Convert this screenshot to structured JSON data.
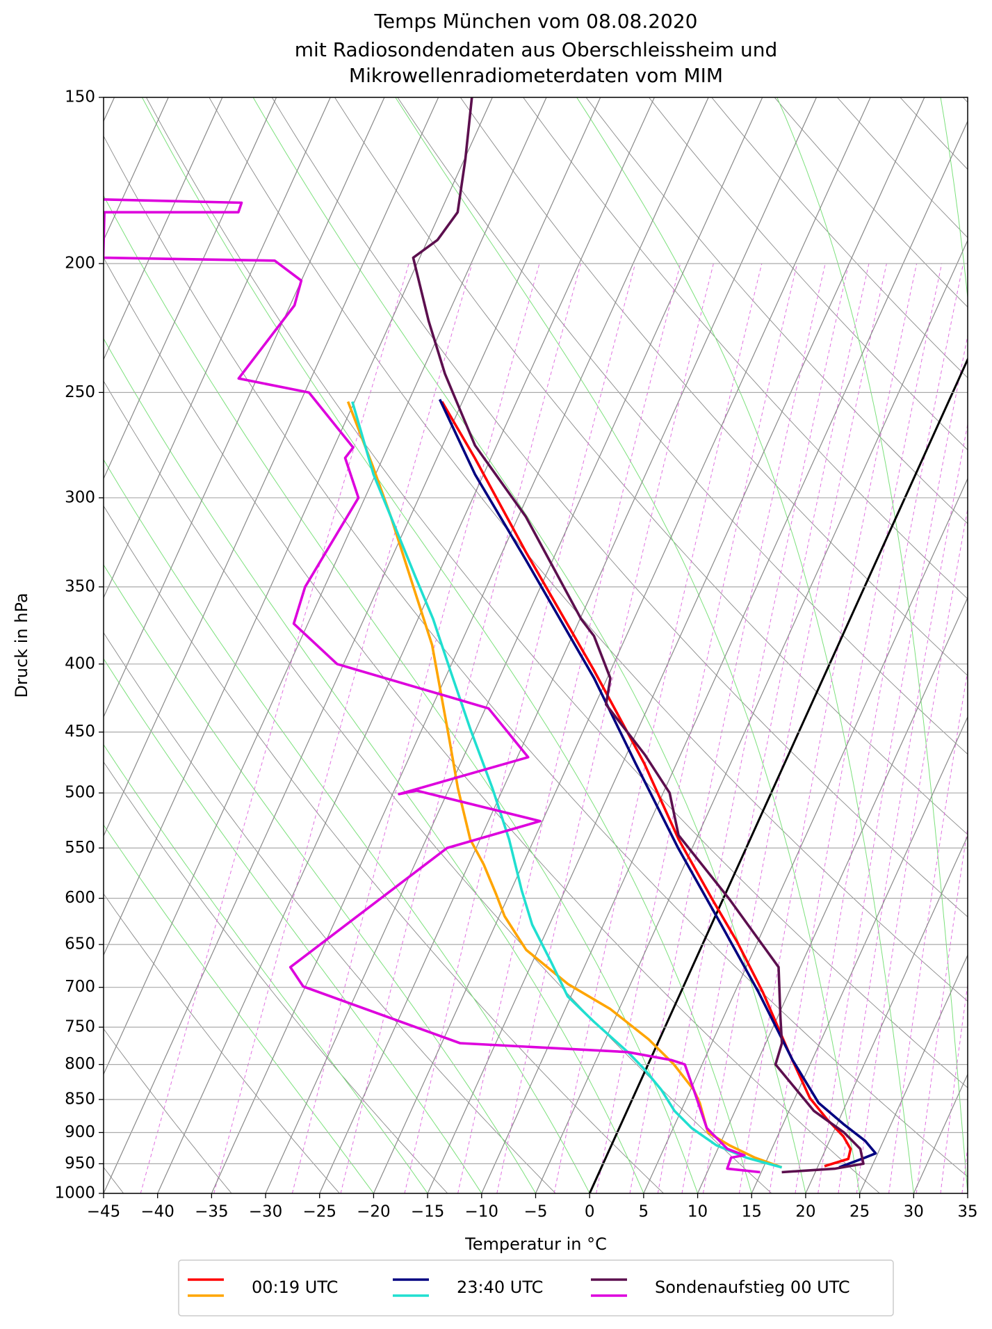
{
  "chart_data": {
    "type": "skewt",
    "title": [
      "Temps München vom 08.08.2020",
      "mit Radiosondendaten aus Oberschleissheim und",
      "Mikrowellenradiometerdaten vom MIM"
    ],
    "x_label": "Temperatur in °C",
    "y_label": "Druck in hPa",
    "log_scale_y": true,
    "grid": true,
    "legend_position": "bottom",
    "xlim": [
      -45,
      35
    ],
    "ylim": [
      1000,
      150
    ],
    "xticks": [
      {
        "value": -45,
        "label": "−45"
      },
      {
        "value": -40,
        "label": "−40"
      },
      {
        "value": -35,
        "label": "−35"
      },
      {
        "value": -30,
        "label": "−30"
      },
      {
        "value": -25,
        "label": "−25"
      },
      {
        "value": -20,
        "label": "−20"
      },
      {
        "value": -15,
        "label": "−15"
      },
      {
        "value": -10,
        "label": "−10"
      },
      {
        "value": -5,
        "label": "−5"
      },
      0,
      5,
      10,
      15,
      20,
      25,
      30,
      35
    ],
    "yticks": [
      1000,
      950,
      900,
      850,
      800,
      750,
      700,
      650,
      600,
      550,
      500,
      450,
      400,
      350,
      300,
      250,
      200,
      150
    ],
    "series": [
      {
        "name": "00:19 UTC",
        "temperature": {
          "color": "#ff0000",
          "pressure": [
            954,
            942,
            926,
            906,
            880,
            848,
            783,
            706,
            647,
            601,
            542,
            475,
            404,
            329,
            280,
            254
          ],
          "values": [
            20.6,
            22.5,
            22.3,
            21.1,
            18.9,
            16.4,
            12.5,
            7.6,
            3.1,
            -1.0,
            -6.6,
            -13.0,
            -21.6,
            -32.9,
            -41.5,
            -46.9
          ]
        },
        "dewpoint": {
          "color": "#ffa500",
          "pressure": [
            956,
            940,
            920,
            900,
            855,
            836,
            800,
            766,
            727,
            696,
            656,
            619,
            596,
            566,
            542,
            496,
            455,
            387,
            354,
            310,
            284,
            254
          ],
          "values": [
            16.7,
            13.8,
            10.9,
            8.4,
            6.4,
            5.3,
            2.4,
            -1.0,
            -5.8,
            -10.8,
            -16.1,
            -19.5,
            -21.2,
            -23.6,
            -25.9,
            -29.2,
            -32.1,
            -37.6,
            -41.3,
            -46.8,
            -50.6,
            -55.6
          ]
        }
      },
      {
        "name": "23:40 UTC",
        "temperature": {
          "color": "#000080",
          "pressure": [
            956,
            940,
            933,
            913,
            887,
            855,
            794,
            706,
            628,
            550,
            475,
            410,
            334,
            288,
            253
          ],
          "values": [
            22.0,
            24.0,
            24.8,
            23.3,
            20.6,
            17.4,
            13.2,
            7.2,
            0.9,
            -6.3,
            -13.8,
            -21.2,
            -32.5,
            -40.8,
            -47.2
          ]
        },
        "dewpoint": {
          "color": "#20dfd0",
          "pressure": [
            956,
            940,
            920,
            893,
            867,
            836,
            806,
            783,
            743,
            711,
            671,
            628,
            592,
            542,
            496,
            448,
            404,
            370,
            344,
            310,
            288,
            254
          ],
          "values": [
            16.7,
            13.0,
            9.7,
            6.7,
            4.4,
            2.3,
            -0.2,
            -2.4,
            -6.8,
            -10.3,
            -13.2,
            -16.6,
            -19.0,
            -22.3,
            -26.0,
            -30.5,
            -34.9,
            -38.6,
            -42.0,
            -46.8,
            -50.2,
            -55.2
          ]
        }
      },
      {
        "name": "Sondenaufstieg 00 UTC",
        "temperature": {
          "color": "#5c0f4e",
          "pressure": [
            964,
            958,
            950,
            926,
            900,
            867,
            800,
            771,
            738,
            676,
            601,
            538,
            500,
            468,
            429,
            410,
            381,
            370,
            310,
            274,
            251,
            242,
            221,
            198,
            192,
            183,
            167,
            150
          ],
          "values": [
            16.9,
            21.7,
            24.1,
            23.2,
            21.0,
            17.3,
            11.8,
            11.5,
            10.3,
            8.0,
            0.6,
            -6.8,
            -9.4,
            -13.3,
            -19.0,
            -19.7,
            -23.0,
            -24.9,
            -34.3,
            -42.0,
            -46.1,
            -47.8,
            -51.5,
            -55.6,
            -54.1,
            -53.4,
            -54.9,
            -56.9
          ]
        },
        "dewpoint": {
          "color": "#dd00dd",
          "pressure": [
            964,
            958,
            940,
            936,
            926,
            893,
            836,
            800,
            794,
            783,
            771,
            699,
            676,
            550,
            525,
            498,
            501,
            470,
            432,
            400,
            373,
            350,
            300,
            280,
            275,
            250,
            244,
            215,
            206,
            199,
            198,
            183,
            183,
            180,
            179
          ],
          "values": [
            14.9,
            11.7,
            11.6,
            12.7,
            10.9,
            8.1,
            5.3,
            3.4,
            2.0,
            -2.4,
            -18.3,
            -35.2,
            -37.2,
            -27.7,
            -20.2,
            -32.9,
            -34.4,
            -24.0,
            -29.7,
            -45.6,
            -51.3,
            -51.8,
            -50.6,
            -53.5,
            -53.2,
            -59.6,
            -66.7,
            -64.6,
            -65.0,
            -68.3,
            -84.3,
            -86.1,
            -73.7,
            -73.8,
            -86.8
          ]
        }
      }
    ]
  }
}
